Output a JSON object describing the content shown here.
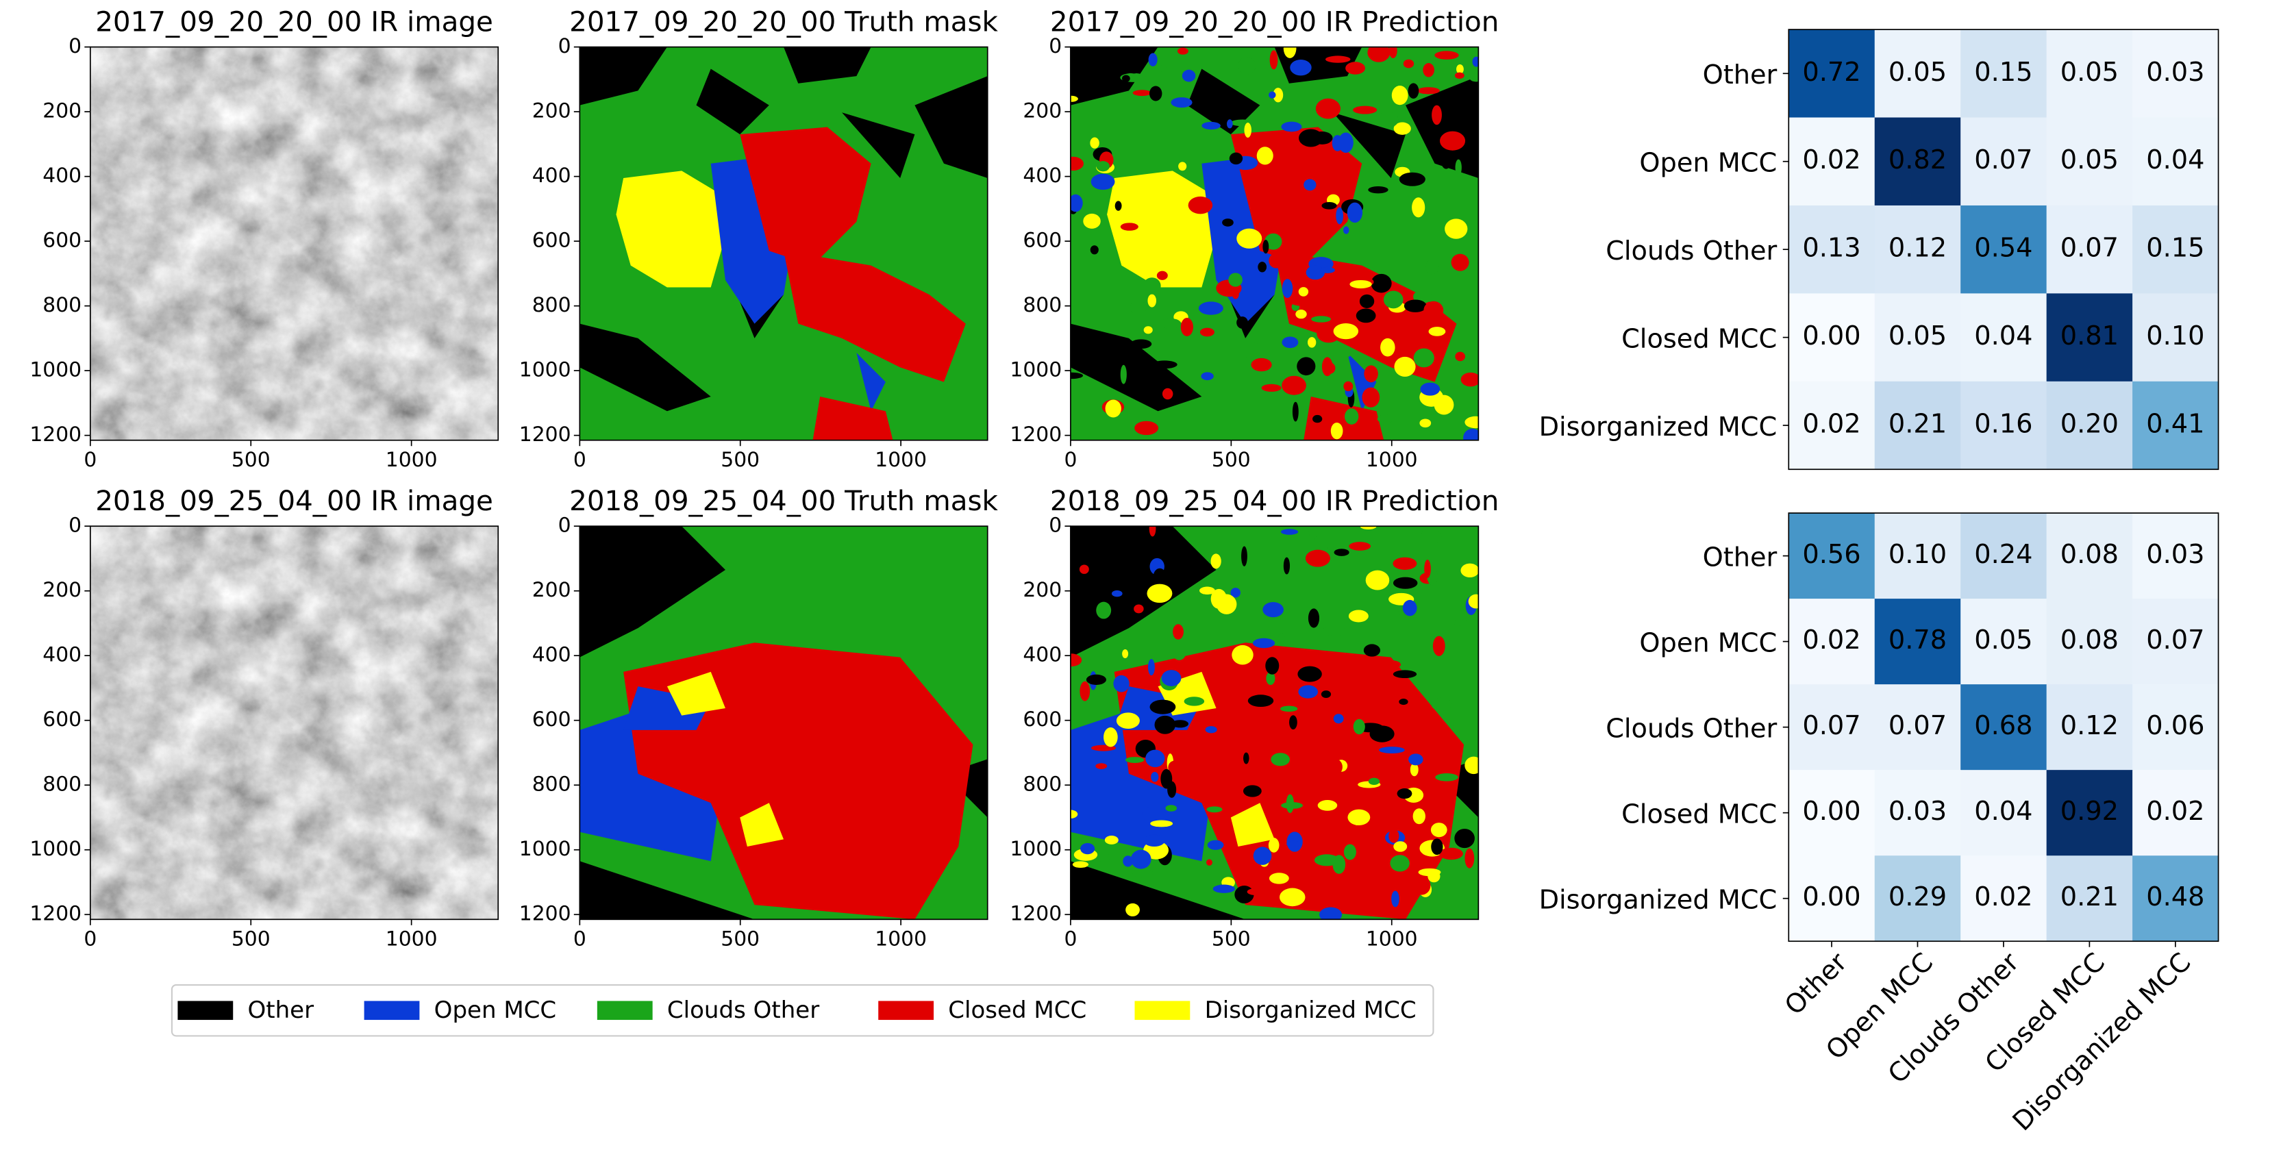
{
  "chart_data": [
    {
      "type": "image",
      "title": "2017_09_20_20_00 IR image",
      "xlim": [
        0,
        1270
      ],
      "ylim": [
        1215,
        0
      ],
      "xticks": [
        0,
        500,
        1000
      ],
      "yticks": [
        0,
        200,
        400,
        600,
        800,
        1000,
        1200
      ]
    },
    {
      "type": "image",
      "title": "2017_09_20_20_00 Truth mask",
      "xlim": [
        0,
        1270
      ],
      "ylim": [
        1215,
        0
      ],
      "xticks": [
        0,
        500,
        1000
      ],
      "yticks": [
        0,
        200,
        400,
        600,
        800,
        1000,
        1200
      ]
    },
    {
      "type": "image",
      "title": "2017_09_20_20_00 IR Prediction",
      "xlim": [
        0,
        1270
      ],
      "ylim": [
        1215,
        0
      ],
      "xticks": [
        0,
        500,
        1000
      ],
      "yticks": [
        0,
        200,
        400,
        600,
        800,
        1000,
        1200
      ]
    },
    {
      "type": "image",
      "title": "2018_09_25_04_00 IR image",
      "xlim": [
        0,
        1270
      ],
      "ylim": [
        1215,
        0
      ],
      "xticks": [
        0,
        500,
        1000
      ],
      "yticks": [
        0,
        200,
        400,
        600,
        800,
        1000,
        1200
      ]
    },
    {
      "type": "image",
      "title": "2018_09_25_04_00 Truth mask",
      "xlim": [
        0,
        1270
      ],
      "ylim": [
        1215,
        0
      ],
      "xticks": [
        0,
        500,
        1000
      ],
      "yticks": [
        0,
        200,
        400,
        600,
        800,
        1000,
        1200
      ]
    },
    {
      "type": "image",
      "title": "2018_09_25_04_00 IR Prediction",
      "xlim": [
        0,
        1270
      ],
      "ylim": [
        1215,
        0
      ],
      "xticks": [
        0,
        500,
        1000
      ],
      "yticks": [
        0,
        200,
        400,
        600,
        800,
        1000,
        1200
      ]
    },
    {
      "type": "heatmap",
      "colormap": "Blues",
      "categories": [
        "Other",
        "Open MCC",
        "Clouds Other",
        "Closed MCC",
        "Disorganized MCC"
      ],
      "values": [
        [
          0.72,
          0.05,
          0.15,
          0.05,
          0.03
        ],
        [
          0.02,
          0.82,
          0.07,
          0.05,
          0.04
        ],
        [
          0.13,
          0.12,
          0.54,
          0.07,
          0.15
        ],
        [
          0.0,
          0.05,
          0.04,
          0.81,
          0.1
        ],
        [
          0.02,
          0.21,
          0.16,
          0.2,
          0.41
        ]
      ],
      "value_labels": [
        [
          "0.72",
          "0.05",
          "0.15",
          "0.05",
          "0.03"
        ],
        [
          "0.02",
          "0.82",
          "0.07",
          "0.05",
          "0.04"
        ],
        [
          "0.13",
          "0.12",
          "0.54",
          "0.07",
          "0.15"
        ],
        [
          "0.00",
          "0.05",
          "0.04",
          "0.81",
          "0.10"
        ],
        [
          "0.02",
          "0.21",
          "0.16",
          "0.20",
          "0.41"
        ]
      ]
    },
    {
      "type": "heatmap",
      "colormap": "Blues",
      "categories": [
        "Other",
        "Open MCC",
        "Clouds Other",
        "Closed MCC",
        "Disorganized MCC"
      ],
      "x_categories": [
        "Other",
        "Open MCC",
        "Clouds Other",
        "Closed MCC",
        "Disorganized MCC"
      ],
      "values": [
        [
          0.56,
          0.1,
          0.24,
          0.08,
          0.03
        ],
        [
          0.02,
          0.78,
          0.05,
          0.08,
          0.07
        ],
        [
          0.07,
          0.07,
          0.68,
          0.12,
          0.06
        ],
        [
          0.0,
          0.03,
          0.04,
          0.92,
          0.02
        ],
        [
          0.0,
          0.29,
          0.02,
          0.21,
          0.48
        ]
      ],
      "value_labels": [
        [
          "0.56",
          "0.10",
          "0.24",
          "0.08",
          "0.03"
        ],
        [
          "0.02",
          "0.78",
          "0.05",
          "0.08",
          "0.07"
        ],
        [
          "0.07",
          "0.07",
          "0.68",
          "0.12",
          "0.06"
        ],
        [
          "0.00",
          "0.03",
          "0.04",
          "0.92",
          "0.02"
        ],
        [
          "0.00",
          "0.29",
          "0.02",
          "0.21",
          "0.48"
        ]
      ]
    }
  ],
  "legend": {
    "items": [
      {
        "name": "Other",
        "color": "#000000"
      },
      {
        "name": "Open MCC",
        "color": "#0a3bd8"
      },
      {
        "name": "Clouds Other",
        "color": "#1aa51a"
      },
      {
        "name": "Closed MCC",
        "color": "#e00000"
      },
      {
        "name": "Disorganized MCC",
        "color": "#ffff00"
      }
    ]
  }
}
